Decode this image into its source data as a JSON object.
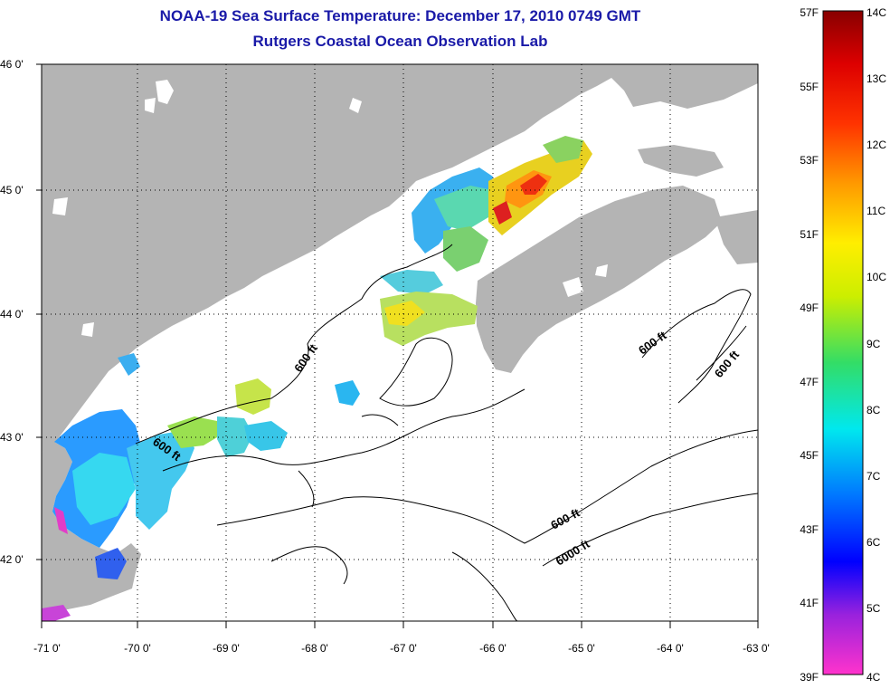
{
  "title": "NOAA-19 Sea Surface Temperature:  December 17, 2010 0749 GMT",
  "subtitle": "Rutgers Coastal Ocean Observation Lab",
  "map": {
    "lon_range": [
      -71,
      -63
    ],
    "lat_range": [
      41.5,
      46
    ],
    "lon_ticks": [
      "-71 0'",
      "-70 0'",
      "-69 0'",
      "-68 0'",
      "-67 0'",
      "-66 0'",
      "-65 0'",
      "-64 0'",
      "-63 0'"
    ],
    "lat_ticks": [
      "46 0'",
      "45 0'",
      "44 0'",
      "43 0'",
      "42 0'"
    ],
    "land_color": "#b4b4b4",
    "grid": "dotted",
    "contour_labels": [
      {
        "text": "600 ft"
      },
      {
        "text": "600 ft"
      },
      {
        "text": "600 ft"
      },
      {
        "text": "600 ft"
      },
      {
        "text": "600 ft"
      },
      {
        "text": "6000 ft"
      }
    ]
  },
  "colorbar": {
    "fahrenheit_labels": [
      "57F",
      "55F",
      "53F",
      "51F",
      "49F",
      "47F",
      "45F",
      "43F",
      "41F",
      "39F"
    ],
    "celsius_labels": [
      "14C",
      "13C",
      "12C",
      "11C",
      "10C",
      "9C",
      "8C",
      "7C",
      "6C",
      "5C",
      "4C"
    ]
  }
}
